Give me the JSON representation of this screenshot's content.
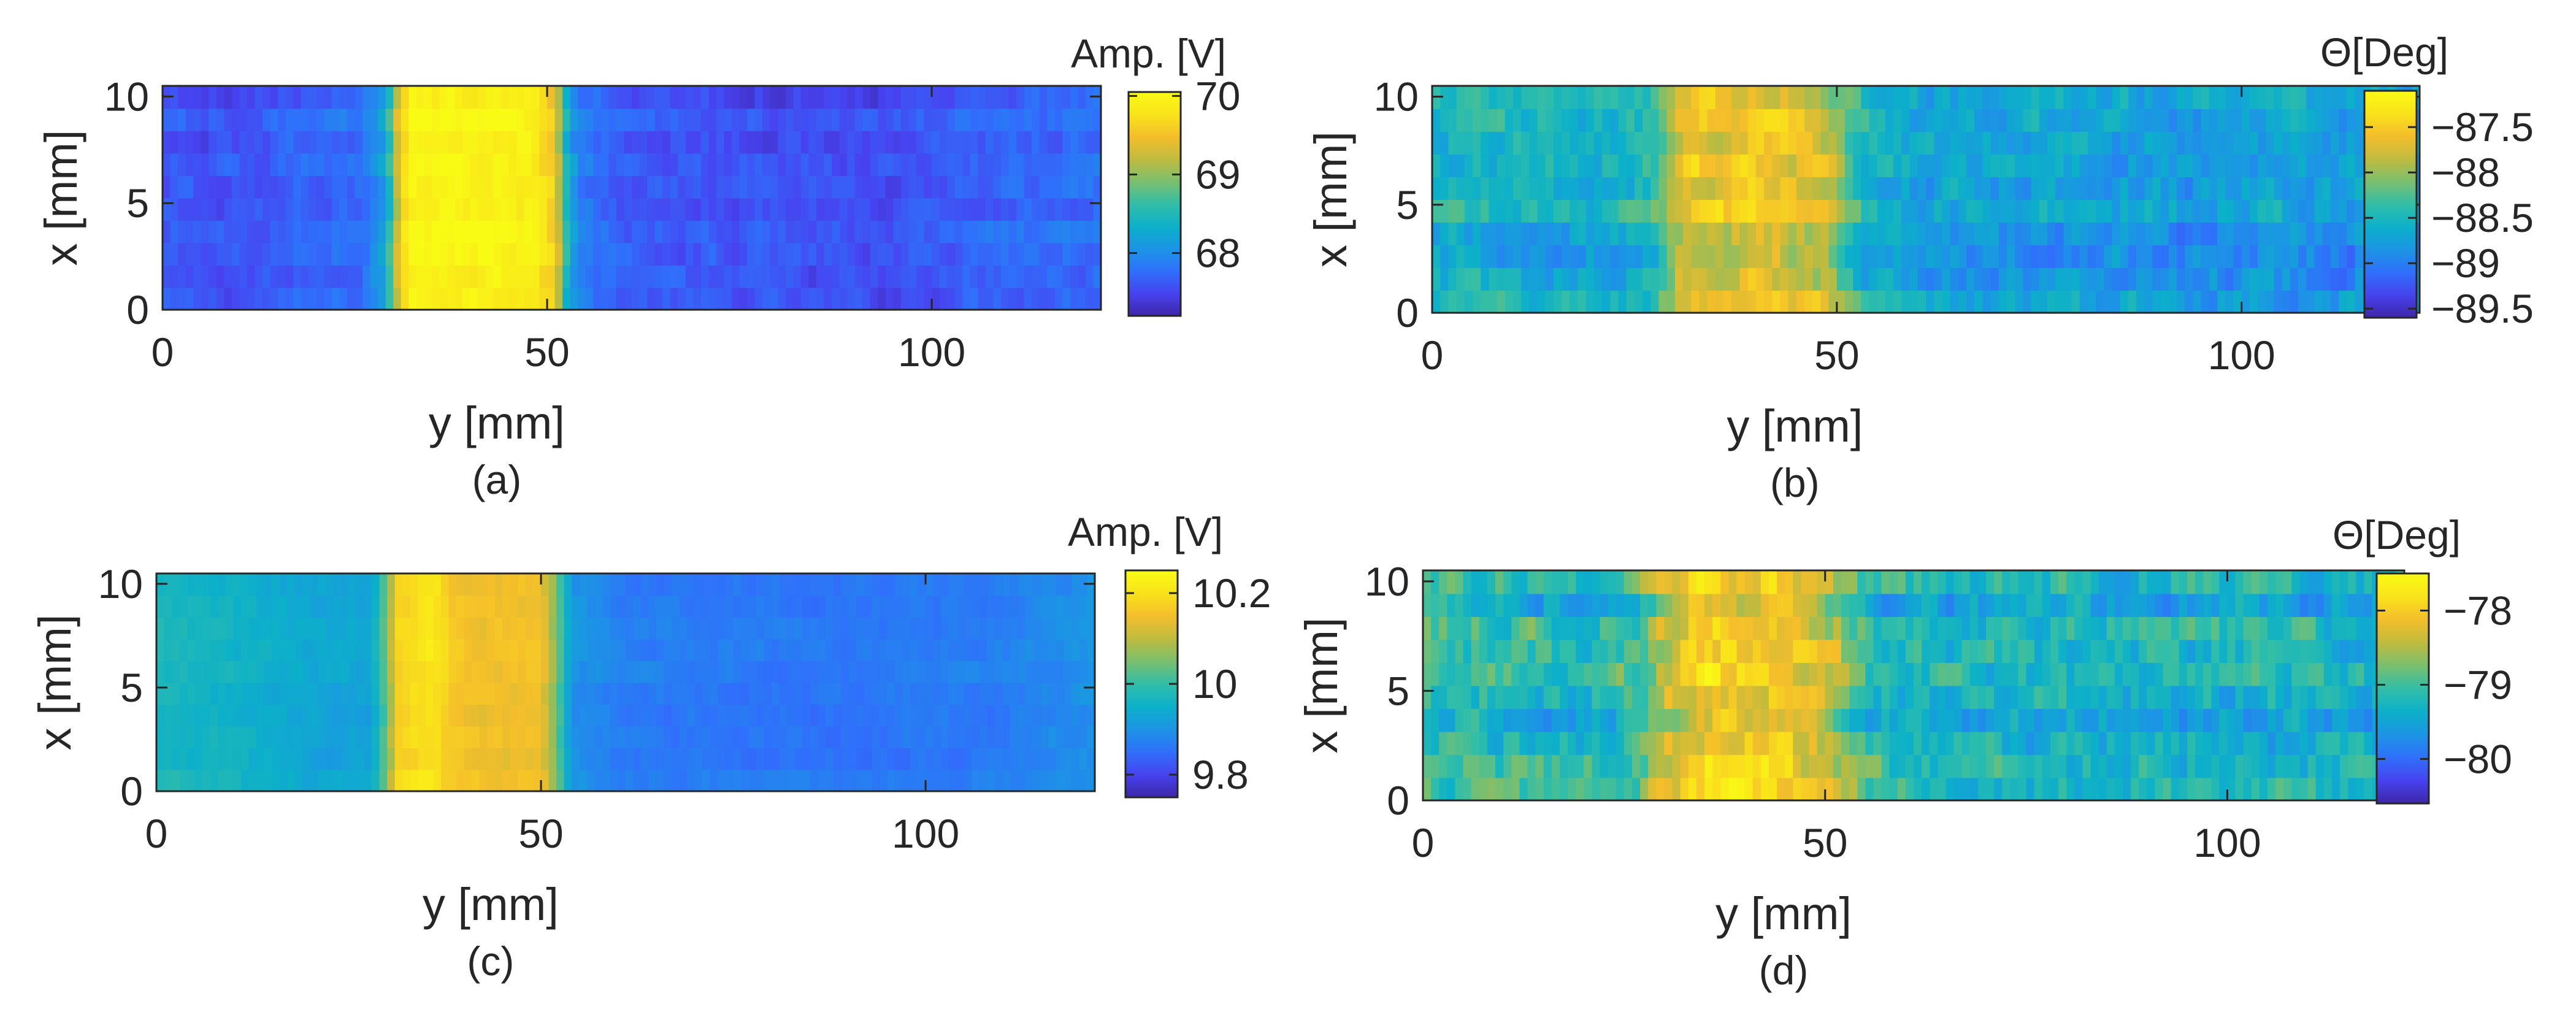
{
  "figure": {
    "panels": [
      {
        "id": "a",
        "sublabel": "(a)",
        "colorbar_title": "Amp. [V]"
      },
      {
        "id": "b",
        "sublabel": "(b)",
        "colorbar_title": "Θ[Deg]"
      },
      {
        "id": "c",
        "sublabel": "(c)",
        "colorbar_title": "Amp. [V]"
      },
      {
        "id": "d",
        "sublabel": "(d)",
        "colorbar_title": "Θ[Deg]"
      }
    ]
  },
  "colors": {
    "colormap": [
      "#3e26a8",
      "#4743f0",
      "#2f70fb",
      "#1c95e5",
      "#0cb0c9",
      "#33bea7",
      "#7abf6e",
      "#c0bb3e",
      "#f4be2b",
      "#f9e31a",
      "#f9fb15"
    ]
  },
  "chart_data": [
    {
      "type": "heatmap",
      "panel": "(a)",
      "xlabel": "y [mm]",
      "ylabel": "x [mm]",
      "xlim": [
        0,
        122
      ],
      "ylim": [
        0,
        10.5
      ],
      "xticks": [
        0,
        50,
        100
      ],
      "yticks": [
        0,
        5,
        10
      ],
      "clim": [
        67.2,
        70.05
      ],
      "colorbar_ticks": [
        68,
        69,
        70
      ],
      "colorbar_title": "Amp. [V]",
      "band": {
        "y_start": 30,
        "y_end": 53
      },
      "profile_y": [
        0,
        10,
        20,
        26,
        29,
        30.5,
        32,
        40,
        48,
        51,
        52.5,
        54,
        60,
        80,
        95,
        105,
        122
      ],
      "profile_value": [
        67.6,
        67.55,
        67.7,
        67.75,
        68.2,
        69.2,
        69.92,
        69.97,
        69.92,
        69.5,
        68.4,
        67.9,
        67.6,
        67.55,
        67.5,
        67.65,
        67.75
      ],
      "noise": 0.2
    },
    {
      "type": "heatmap",
      "panel": "(b)",
      "xlabel": "y [mm]",
      "ylabel": "x [mm]",
      "xlim": [
        0,
        122
      ],
      "ylim": [
        0,
        10.5
      ],
      "xticks": [
        0,
        50,
        100
      ],
      "yticks": [
        0,
        5,
        10
      ],
      "clim": [
        -89.6,
        -87.1
      ],
      "colorbar_ticks": [
        -87.5,
        -88,
        -88.5,
        -89,
        -89.5
      ],
      "colorbar_title": "Θ[Deg]",
      "band": {
        "y_start": 30,
        "y_end": 51
      },
      "profile_y": [
        0,
        20,
        27,
        29,
        31,
        40,
        48,
        50,
        53,
        60,
        122
      ],
      "profile_value": [
        -88.55,
        -88.6,
        -88.5,
        -88.2,
        -87.7,
        -87.6,
        -87.8,
        -88.1,
        -88.5,
        -88.75,
        -88.8
      ],
      "noise": 0.35
    },
    {
      "type": "heatmap",
      "panel": "(c)",
      "xlabel": "y [mm]",
      "ylabel": "x [mm]",
      "xlim": [
        0,
        122
      ],
      "ylim": [
        0,
        10.5
      ],
      "xticks": [
        0,
        50,
        100
      ],
      "yticks": [
        0,
        5,
        10
      ],
      "clim": [
        9.75,
        10.25
      ],
      "colorbar_ticks": [
        9.8,
        10,
        10.2
      ],
      "colorbar_title": "Amp. [V]",
      "band": {
        "y_start": 30,
        "y_end": 53
      },
      "profile_y": [
        0,
        10,
        20,
        28,
        30,
        31.5,
        36,
        38,
        42,
        50,
        52,
        54,
        60,
        90,
        110,
        122
      ],
      "profile_value": [
        9.97,
        9.96,
        9.93,
        9.93,
        10.05,
        10.18,
        10.21,
        10.17,
        10.15,
        10.15,
        10.05,
        9.9,
        9.87,
        9.86,
        9.87,
        9.9
      ],
      "noise": 0.02
    },
    {
      "type": "heatmap",
      "panel": "(d)",
      "xlabel": "y [mm]",
      "ylabel": "x [mm]",
      "xlim": [
        0,
        122
      ],
      "ylim": [
        0,
        10.5
      ],
      "xticks": [
        0,
        50,
        100
      ],
      "yticks": [
        0,
        5,
        10
      ],
      "clim": [
        -80.6,
        -77.5
      ],
      "colorbar_ticks": [
        -78,
        -79,
        -80
      ],
      "colorbar_title": "Θ[Deg]",
      "band": {
        "y_start": 28,
        "y_end": 54
      },
      "profile_y": [
        0,
        20,
        27,
        30,
        35,
        45,
        50,
        55,
        60,
        122
      ],
      "profile_value": [
        -79.1,
        -79.2,
        -79.0,
        -78.4,
        -78.0,
        -78.1,
        -78.4,
        -79.1,
        -79.3,
        -79.35
      ],
      "noise": 0.55
    }
  ]
}
